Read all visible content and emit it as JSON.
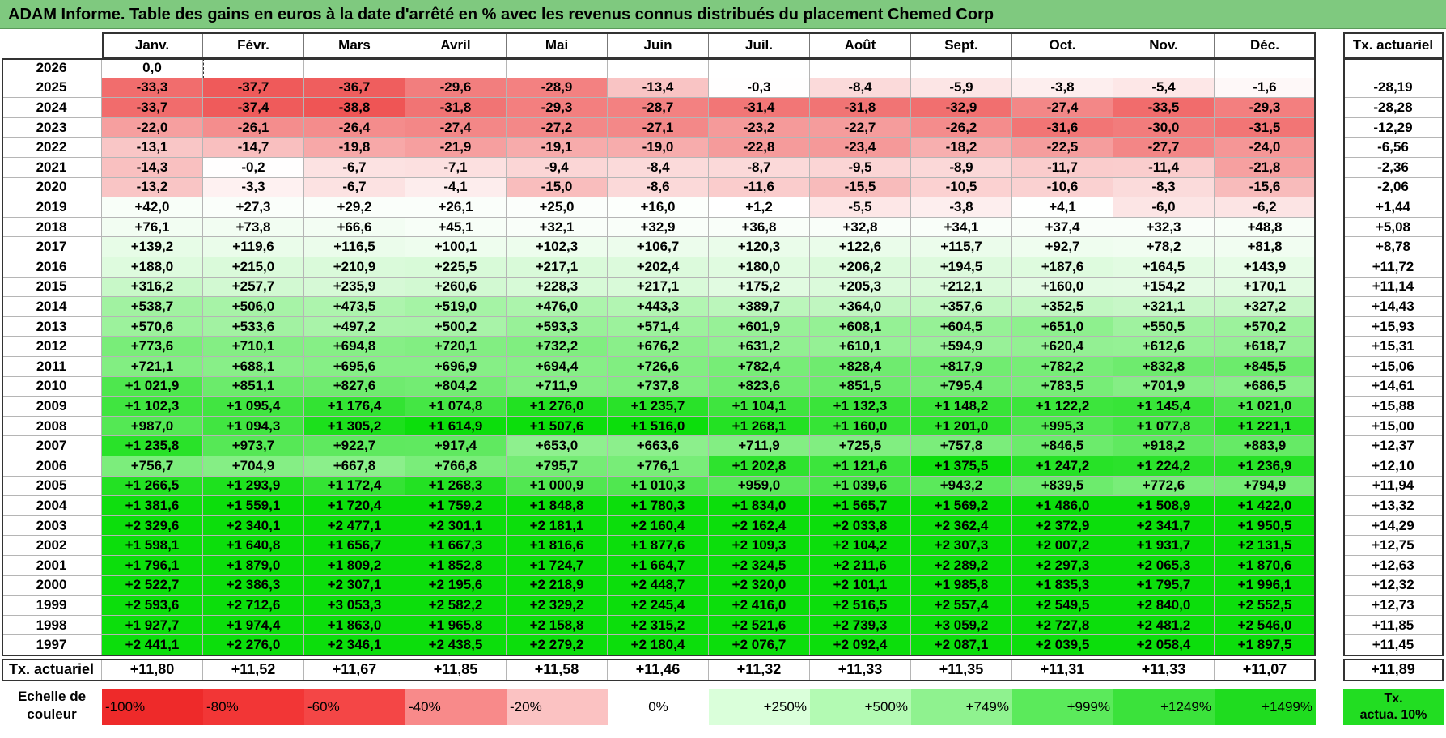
{
  "title": "ADAM Informe. Table des gains en euros à la date d'arrêté en % avec les revenus connus distribués du placement Chemed Corp",
  "chart_data": {
    "type": "table",
    "columns": [
      "Janv.",
      "Févr.",
      "Mars",
      "Avril",
      "Mai",
      "Juin",
      "Juil.",
      "Août",
      "Sept.",
      "Oct.",
      "Nov.",
      "Déc."
    ],
    "rate_header": "Tx. actuariel",
    "rows": [
      {
        "year": "2026",
        "values": [
          "0,0",
          "",
          "",
          "",
          "",
          "",
          "",
          "",
          "",
          "",
          "",
          ""
        ],
        "rate": ""
      },
      {
        "year": "2025",
        "values": [
          "-33,3",
          "-37,7",
          "-36,7",
          "-29,6",
          "-28,9",
          "-13,4",
          "-0,3",
          "-8,4",
          "-5,9",
          "-3,8",
          "-5,4",
          "-1,6"
        ],
        "rate": "-28,19"
      },
      {
        "year": "2024",
        "values": [
          "-33,7",
          "-37,4",
          "-38,8",
          "-31,8",
          "-29,3",
          "-28,7",
          "-31,4",
          "-31,8",
          "-32,9",
          "-27,4",
          "-33,5",
          "-29,3"
        ],
        "rate": "-28,28"
      },
      {
        "year": "2023",
        "values": [
          "-22,0",
          "-26,1",
          "-26,4",
          "-27,4",
          "-27,2",
          "-27,1",
          "-23,2",
          "-22,7",
          "-26,2",
          "-31,6",
          "-30,0",
          "-31,5"
        ],
        "rate": "-12,29"
      },
      {
        "year": "2022",
        "values": [
          "-13,1",
          "-14,7",
          "-19,8",
          "-21,9",
          "-19,1",
          "-19,0",
          "-22,8",
          "-23,4",
          "-18,2",
          "-22,5",
          "-27,7",
          "-24,0"
        ],
        "rate": "-6,56"
      },
      {
        "year": "2021",
        "values": [
          "-14,3",
          "-0,2",
          "-6,7",
          "-7,1",
          "-9,4",
          "-8,4",
          "-8,7",
          "-9,5",
          "-8,9",
          "-11,7",
          "-11,4",
          "-21,8"
        ],
        "rate": "-2,36"
      },
      {
        "year": "2020",
        "values": [
          "-13,2",
          "-3,3",
          "-6,7",
          "-4,1",
          "-15,0",
          "-8,6",
          "-11,6",
          "-15,5",
          "-10,5",
          "-10,6",
          "-8,3",
          "-15,6"
        ],
        "rate": "-2,06"
      },
      {
        "year": "2019",
        "values": [
          "+42,0",
          "+27,3",
          "+29,2",
          "+26,1",
          "+25,0",
          "+16,0",
          "+1,2",
          "-5,5",
          "-3,8",
          "+4,1",
          "-6,0",
          "-6,2"
        ],
        "rate": "+1,44"
      },
      {
        "year": "2018",
        "values": [
          "+76,1",
          "+73,8",
          "+66,6",
          "+45,1",
          "+32,1",
          "+32,9",
          "+36,8",
          "+32,8",
          "+34,1",
          "+37,4",
          "+32,3",
          "+48,8"
        ],
        "rate": "+5,08"
      },
      {
        "year": "2017",
        "values": [
          "+139,2",
          "+119,6",
          "+116,5",
          "+100,1",
          "+102,3",
          "+106,7",
          "+120,3",
          "+122,6",
          "+115,7",
          "+92,7",
          "+78,2",
          "+81,8"
        ],
        "rate": "+8,78"
      },
      {
        "year": "2016",
        "values": [
          "+188,0",
          "+215,0",
          "+210,9",
          "+225,5",
          "+217,1",
          "+202,4",
          "+180,0",
          "+206,2",
          "+194,5",
          "+187,6",
          "+164,5",
          "+143,9"
        ],
        "rate": "+11,72"
      },
      {
        "year": "2015",
        "values": [
          "+316,2",
          "+257,7",
          "+235,9",
          "+260,6",
          "+228,3",
          "+217,1",
          "+175,2",
          "+205,3",
          "+212,1",
          "+160,0",
          "+154,2",
          "+170,1"
        ],
        "rate": "+11,14"
      },
      {
        "year": "2014",
        "values": [
          "+538,7",
          "+506,0",
          "+473,5",
          "+519,0",
          "+476,0",
          "+443,3",
          "+389,7",
          "+364,0",
          "+357,6",
          "+352,5",
          "+321,1",
          "+327,2"
        ],
        "rate": "+14,43"
      },
      {
        "year": "2013",
        "values": [
          "+570,6",
          "+533,6",
          "+497,2",
          "+500,2",
          "+593,3",
          "+571,4",
          "+601,9",
          "+608,1",
          "+604,5",
          "+651,0",
          "+550,5",
          "+570,2"
        ],
        "rate": "+15,93"
      },
      {
        "year": "2012",
        "values": [
          "+773,6",
          "+710,1",
          "+694,8",
          "+720,1",
          "+732,2",
          "+676,2",
          "+631,2",
          "+610,1",
          "+594,9",
          "+620,4",
          "+612,6",
          "+618,7"
        ],
        "rate": "+15,31"
      },
      {
        "year": "2011",
        "values": [
          "+721,1",
          "+688,1",
          "+695,6",
          "+696,9",
          "+694,4",
          "+726,6",
          "+782,4",
          "+828,4",
          "+817,9",
          "+782,2",
          "+832,8",
          "+845,5"
        ],
        "rate": "+15,06"
      },
      {
        "year": "2010",
        "values": [
          "+1 021,9",
          "+851,1",
          "+827,6",
          "+804,2",
          "+711,9",
          "+737,8",
          "+823,6",
          "+851,5",
          "+795,4",
          "+783,5",
          "+701,9",
          "+686,5"
        ],
        "rate": "+14,61"
      },
      {
        "year": "2009",
        "values": [
          "+1 102,3",
          "+1 095,4",
          "+1 176,4",
          "+1 074,8",
          "+1 276,0",
          "+1 235,7",
          "+1 104,1",
          "+1 132,3",
          "+1 148,2",
          "+1 122,2",
          "+1 145,4",
          "+1 021,0"
        ],
        "rate": "+15,88"
      },
      {
        "year": "2008",
        "values": [
          "+987,0",
          "+1 094,3",
          "+1 305,2",
          "+1 614,9",
          "+1 507,6",
          "+1 516,0",
          "+1 268,1",
          "+1 160,0",
          "+1 201,0",
          "+995,3",
          "+1 077,8",
          "+1 221,1"
        ],
        "rate": "+15,00"
      },
      {
        "year": "2007",
        "values": [
          "+1 235,8",
          "+973,7",
          "+922,7",
          "+917,4",
          "+653,0",
          "+663,6",
          "+711,9",
          "+725,5",
          "+757,8",
          "+846,5",
          "+918,2",
          "+883,9"
        ],
        "rate": "+12,37"
      },
      {
        "year": "2006",
        "values": [
          "+756,7",
          "+704,9",
          "+667,8",
          "+766,8",
          "+795,7",
          "+776,1",
          "+1 202,8",
          "+1 121,6",
          "+1 375,5",
          "+1 247,2",
          "+1 224,2",
          "+1 236,9"
        ],
        "rate": "+12,10"
      },
      {
        "year": "2005",
        "values": [
          "+1 266,5",
          "+1 293,9",
          "+1 172,4",
          "+1 268,3",
          "+1 000,9",
          "+1 010,3",
          "+959,0",
          "+1 039,6",
          "+943,2",
          "+839,5",
          "+772,6",
          "+794,9"
        ],
        "rate": "+11,94"
      },
      {
        "year": "2004",
        "values": [
          "+1 381,6",
          "+1 559,1",
          "+1 720,4",
          "+1 759,2",
          "+1 848,8",
          "+1 780,3",
          "+1 834,0",
          "+1 565,7",
          "+1 569,2",
          "+1 486,0",
          "+1 508,9",
          "+1 422,0"
        ],
        "rate": "+13,32"
      },
      {
        "year": "2003",
        "values": [
          "+2 329,6",
          "+2 340,1",
          "+2 477,1",
          "+2 301,1",
          "+2 181,1",
          "+2 160,4",
          "+2 162,4",
          "+2 033,8",
          "+2 362,4",
          "+2 372,9",
          "+2 341,7",
          "+1 950,5"
        ],
        "rate": "+14,29"
      },
      {
        "year": "2002",
        "values": [
          "+1 598,1",
          "+1 640,8",
          "+1 656,7",
          "+1 667,3",
          "+1 816,6",
          "+1 877,6",
          "+2 109,3",
          "+2 104,2",
          "+2 307,3",
          "+2 007,2",
          "+1 931,7",
          "+2 131,5"
        ],
        "rate": "+12,75"
      },
      {
        "year": "2001",
        "values": [
          "+1 796,1",
          "+1 879,0",
          "+1 809,2",
          "+1 852,8",
          "+1 724,7",
          "+1 664,7",
          "+2 324,5",
          "+2 211,6",
          "+2 289,2",
          "+2 297,3",
          "+2 065,3",
          "+1 870,6"
        ],
        "rate": "+12,63"
      },
      {
        "year": "2000",
        "values": [
          "+2 522,7",
          "+2 386,3",
          "+2 307,1",
          "+2 195,6",
          "+2 218,9",
          "+2 448,7",
          "+2 320,0",
          "+2 101,1",
          "+1 985,8",
          "+1 835,3",
          "+1 795,7",
          "+1 996,1"
        ],
        "rate": "+12,32"
      },
      {
        "year": "1999",
        "values": [
          "+2 593,6",
          "+2 712,6",
          "+3 053,3",
          "+2 582,2",
          "+2 329,2",
          "+2 245,4",
          "+2 416,0",
          "+2 516,5",
          "+2 557,4",
          "+2 549,5",
          "+2 840,0",
          "+2 552,5"
        ],
        "rate": "+12,73"
      },
      {
        "year": "1998",
        "values": [
          "+1 927,7",
          "+1 974,4",
          "+1 863,0",
          "+1 965,8",
          "+2 158,8",
          "+2 315,2",
          "+2 521,6",
          "+2 739,3",
          "+3 059,2",
          "+2 727,8",
          "+2 481,2",
          "+2 546,0"
        ],
        "rate": "+11,85"
      },
      {
        "year": "1997",
        "values": [
          "+2 441,1",
          "+2 276,0",
          "+2 346,1",
          "+2 438,5",
          "+2 279,2",
          "+2 180,4",
          "+2 076,7",
          "+2 092,4",
          "+2 087,1",
          "+2 039,5",
          "+2 058,4",
          "+1 897,5"
        ],
        "rate": "+11,45"
      }
    ],
    "footer": {
      "label": "Tx. actuariel",
      "values": [
        "+11,80",
        "+11,52",
        "+11,67",
        "+11,85",
        "+11,58",
        "+11,46",
        "+11,32",
        "+11,33",
        "+11,35",
        "+11,31",
        "+11,33",
        "+11,07"
      ],
      "rate": "+11,89"
    },
    "legend": {
      "label_line1": "Echelle de",
      "label_line2": "couleur",
      "items": [
        {
          "text": "-100%",
          "color": "#ee2a2a",
          "align": "left"
        },
        {
          "text": "-80%",
          "color": "#f23636",
          "align": "left"
        },
        {
          "text": "-60%",
          "color": "#f44646",
          "align": "left"
        },
        {
          "text": "-40%",
          "color": "#f88a8a",
          "align": "left"
        },
        {
          "text": "-20%",
          "color": "#fbc2c2",
          "align": "left"
        },
        {
          "text": "0%",
          "color": "#ffffff",
          "align": "center"
        },
        {
          "text": "+250%",
          "color": "#daffda",
          "align": "right"
        },
        {
          "text": "+500%",
          "color": "#b3fab3",
          "align": "right"
        },
        {
          "text": "+749%",
          "color": "#8ff28f",
          "align": "right"
        },
        {
          "text": "+999%",
          "color": "#5bea5b",
          "align": "right"
        },
        {
          "text": "+1249%",
          "color": "#3be23b",
          "align": "right"
        },
        {
          "text": "+1499%",
          "color": "#1fdc1f",
          "align": "right"
        }
      ],
      "ta_line1": "Tx.",
      "ta_line2": "actua. 10%",
      "ta_color": "#22dd22"
    }
  }
}
